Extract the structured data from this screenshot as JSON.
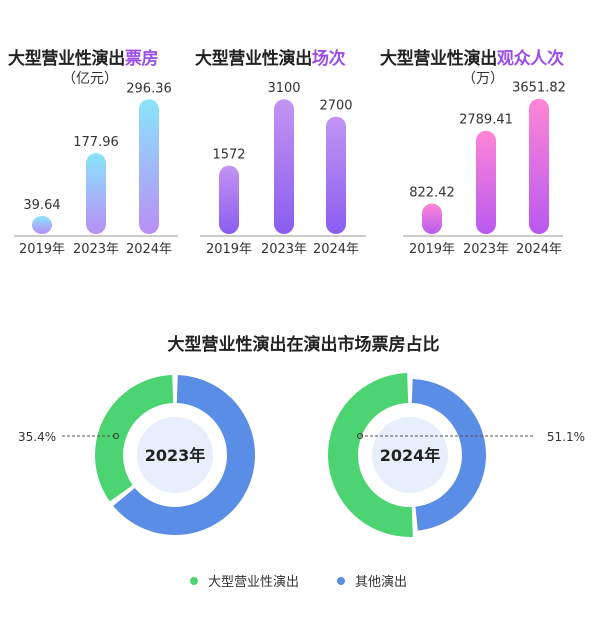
{
  "bar_charts": [
    {
      "title_main": "大型营业性演出",
      "title_highlight": "票房",
      "unit": "（亿元）"
    },
    {
      "title_main": "大型营业性演出",
      "title_highlight": "场次",
      "unit": ""
    },
    {
      "title_main": "大型营业性演出",
      "title_highlight": "观众人次",
      "unit": "（万）"
    }
  ],
  "donut_section": {
    "title": "大型营业性演出在演出市场票房占比",
    "legend": [
      {
        "label": "大型营业性演出",
        "color": "#4cd372"
      },
      {
        "label": "其他演出",
        "color": "#5a8de6"
      }
    ]
  },
  "colors": {
    "bar1_top": "#89e4fb",
    "bar1_bottom": "#b98ef5",
    "bar2_top": "#c494f2",
    "bar2_bottom": "#8a5df0",
    "bar3_top": "#ff86d6",
    "bar3_bottom": "#b859f0",
    "green": "#4cd372",
    "blue": "#5a8de6",
    "hole": "#e8effc"
  },
  "chart_data": [
    {
      "type": "bar",
      "title": "大型营业性演出票房",
      "categories": [
        "2019年",
        "2023年",
        "2024年"
      ],
      "values": [
        39.64,
        177.96,
        296.36
      ],
      "value_labels": [
        "39.64",
        "177.96",
        "296.36"
      ],
      "ylabel": "（亿元）",
      "ylim": [
        0,
        330
      ]
    },
    {
      "type": "bar",
      "title": "大型营业性演出场次",
      "categories": [
        "2019年",
        "2023年",
        "2024年"
      ],
      "values": [
        1572,
        3100,
        2700
      ],
      "value_labels": [
        "1572",
        "3100",
        "2700"
      ],
      "ylim": [
        0,
        3450
      ]
    },
    {
      "type": "bar",
      "title": "大型营业性演出观众人次",
      "categories": [
        "2019年",
        "2023年",
        "2024年"
      ],
      "values": [
        822.42,
        2789.41,
        3651.82
      ],
      "value_labels": [
        "822.42",
        "2789.41",
        "3651.82"
      ],
      "ylabel": "（万）",
      "ylim": [
        0,
        4050
      ]
    },
    {
      "type": "pie",
      "title": "2023年",
      "labels": [
        "大型营业性演出",
        "其他演出"
      ],
      "values": [
        35.4,
        64.6
      ],
      "value_label": "35.4%"
    },
    {
      "type": "pie",
      "title": "2024年",
      "labels": [
        "大型营业性演出",
        "其他演出"
      ],
      "values": [
        51.1,
        48.9
      ],
      "value_label": "51.1%"
    }
  ]
}
